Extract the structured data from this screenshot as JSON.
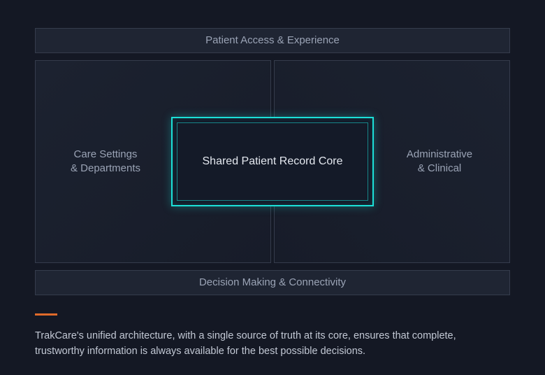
{
  "diagram": {
    "type": "block-architecture",
    "background_color": "#141824",
    "box_border_color": "#353c4c",
    "box_fill_color": "#1f2533",
    "side_box_gradient_from": "#1c2230",
    "side_box_gradient_to": "#171c29",
    "label_color": "#9aa3b5",
    "label_fontsize": 15,
    "top": {
      "label": "Patient Access & Experience"
    },
    "left": {
      "line1": "Care Settings",
      "line2": "& Departments"
    },
    "right": {
      "line1": "Administrative",
      "line2": "& Clinical"
    },
    "center": {
      "label": "Shared Patient Record Core",
      "border_color": "#1ce0d8",
      "glow_color": "rgba(28,224,216,0.35)",
      "text_color": "#e4e8ef",
      "fontsize": 16
    },
    "bottom": {
      "label": "Decision Making & Connectivity"
    }
  },
  "caption": {
    "accent_color": "#e06a2a",
    "accent_width": 32,
    "accent_height": 3,
    "text_color": "#c2c8d4",
    "fontsize": 14.5,
    "text": "TrakCare's unified architecture, with a single source of truth at its core, ensures that complete, trustworthy information is always available for the best possible decisions."
  }
}
